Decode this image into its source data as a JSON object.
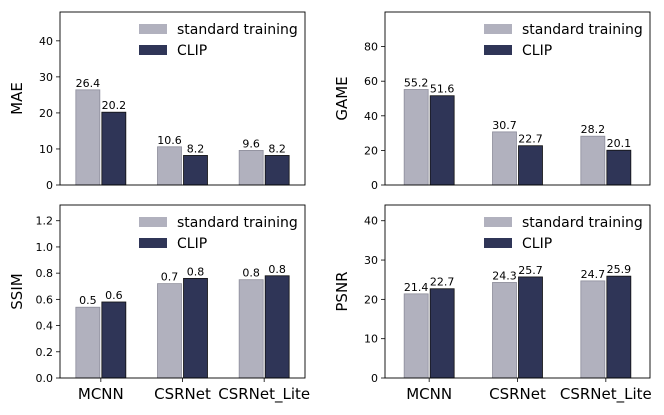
{
  "colors": {
    "standard": "#b1b1be",
    "clip": "#2f3557"
  },
  "chart_data": [
    {
      "type": "bar",
      "ylabel": "MAE",
      "categories": [
        "MCNN",
        "CSRNet",
        "CSRNet_Lite"
      ],
      "ylim": [
        0,
        48
      ],
      "yticks": [
        0,
        10,
        20,
        30,
        40
      ],
      "legend": "top-right",
      "series": [
        {
          "name": "standard training",
          "values": [
            26.4,
            10.6,
            9.6
          ],
          "labels": [
            "26.4",
            "10.6",
            "9.6"
          ]
        },
        {
          "name": "CLIP",
          "values": [
            20.2,
            8.2,
            8.2
          ],
          "labels": [
            "20.2",
            "8.2",
            "8.2"
          ]
        }
      ]
    },
    {
      "type": "bar",
      "ylabel": "GAME",
      "categories": [
        "MCNN",
        "CSRNet",
        "CSRNet_Lite"
      ],
      "ylim": [
        0,
        100
      ],
      "yticks": [
        0,
        20,
        40,
        60,
        80
      ],
      "legend": "top-right",
      "series": [
        {
          "name": "standard training",
          "values": [
            55.2,
            30.7,
            28.2
          ],
          "labels": [
            "55.2",
            "30.7",
            "28.2"
          ]
        },
        {
          "name": "CLIP",
          "values": [
            51.6,
            22.7,
            20.1
          ],
          "labels": [
            "51.6",
            "22.7",
            "20.1"
          ]
        }
      ]
    },
    {
      "type": "bar",
      "ylabel": "SSIM",
      "categories": [
        "MCNN",
        "CSRNet",
        "CSRNet_Lite"
      ],
      "ylim": [
        0,
        1.32
      ],
      "yticks": [
        0.0,
        0.2,
        0.4,
        0.6,
        0.8,
        1.0,
        1.2
      ],
      "tickLabels": [
        "0.0",
        "0.2",
        "0.4",
        "0.6",
        "0.8",
        "1.0",
        "1.2"
      ],
      "legend": "top-right",
      "series": [
        {
          "name": "standard training",
          "values": [
            0.54,
            0.72,
            0.75
          ],
          "labels": [
            "0.5",
            "0.7",
            "0.8"
          ]
        },
        {
          "name": "CLIP",
          "values": [
            0.58,
            0.76,
            0.78
          ],
          "labels": [
            "0.6",
            "0.8",
            "0.8"
          ]
        }
      ]
    },
    {
      "type": "bar",
      "ylabel": "PSNR",
      "categories": [
        "MCNN",
        "CSRNet",
        "CSRNet_Lite"
      ],
      "ylim": [
        0,
        44
      ],
      "yticks": [
        0,
        10,
        20,
        30,
        40
      ],
      "legend": "top-right",
      "series": [
        {
          "name": "standard training",
          "values": [
            21.4,
            24.3,
            24.7
          ],
          "labels": [
            "21.4",
            "24.3",
            "24.7"
          ]
        },
        {
          "name": "CLIP",
          "values": [
            22.7,
            25.7,
            25.9
          ],
          "labels": [
            "22.7",
            "25.7",
            "25.9"
          ]
        }
      ]
    }
  ]
}
